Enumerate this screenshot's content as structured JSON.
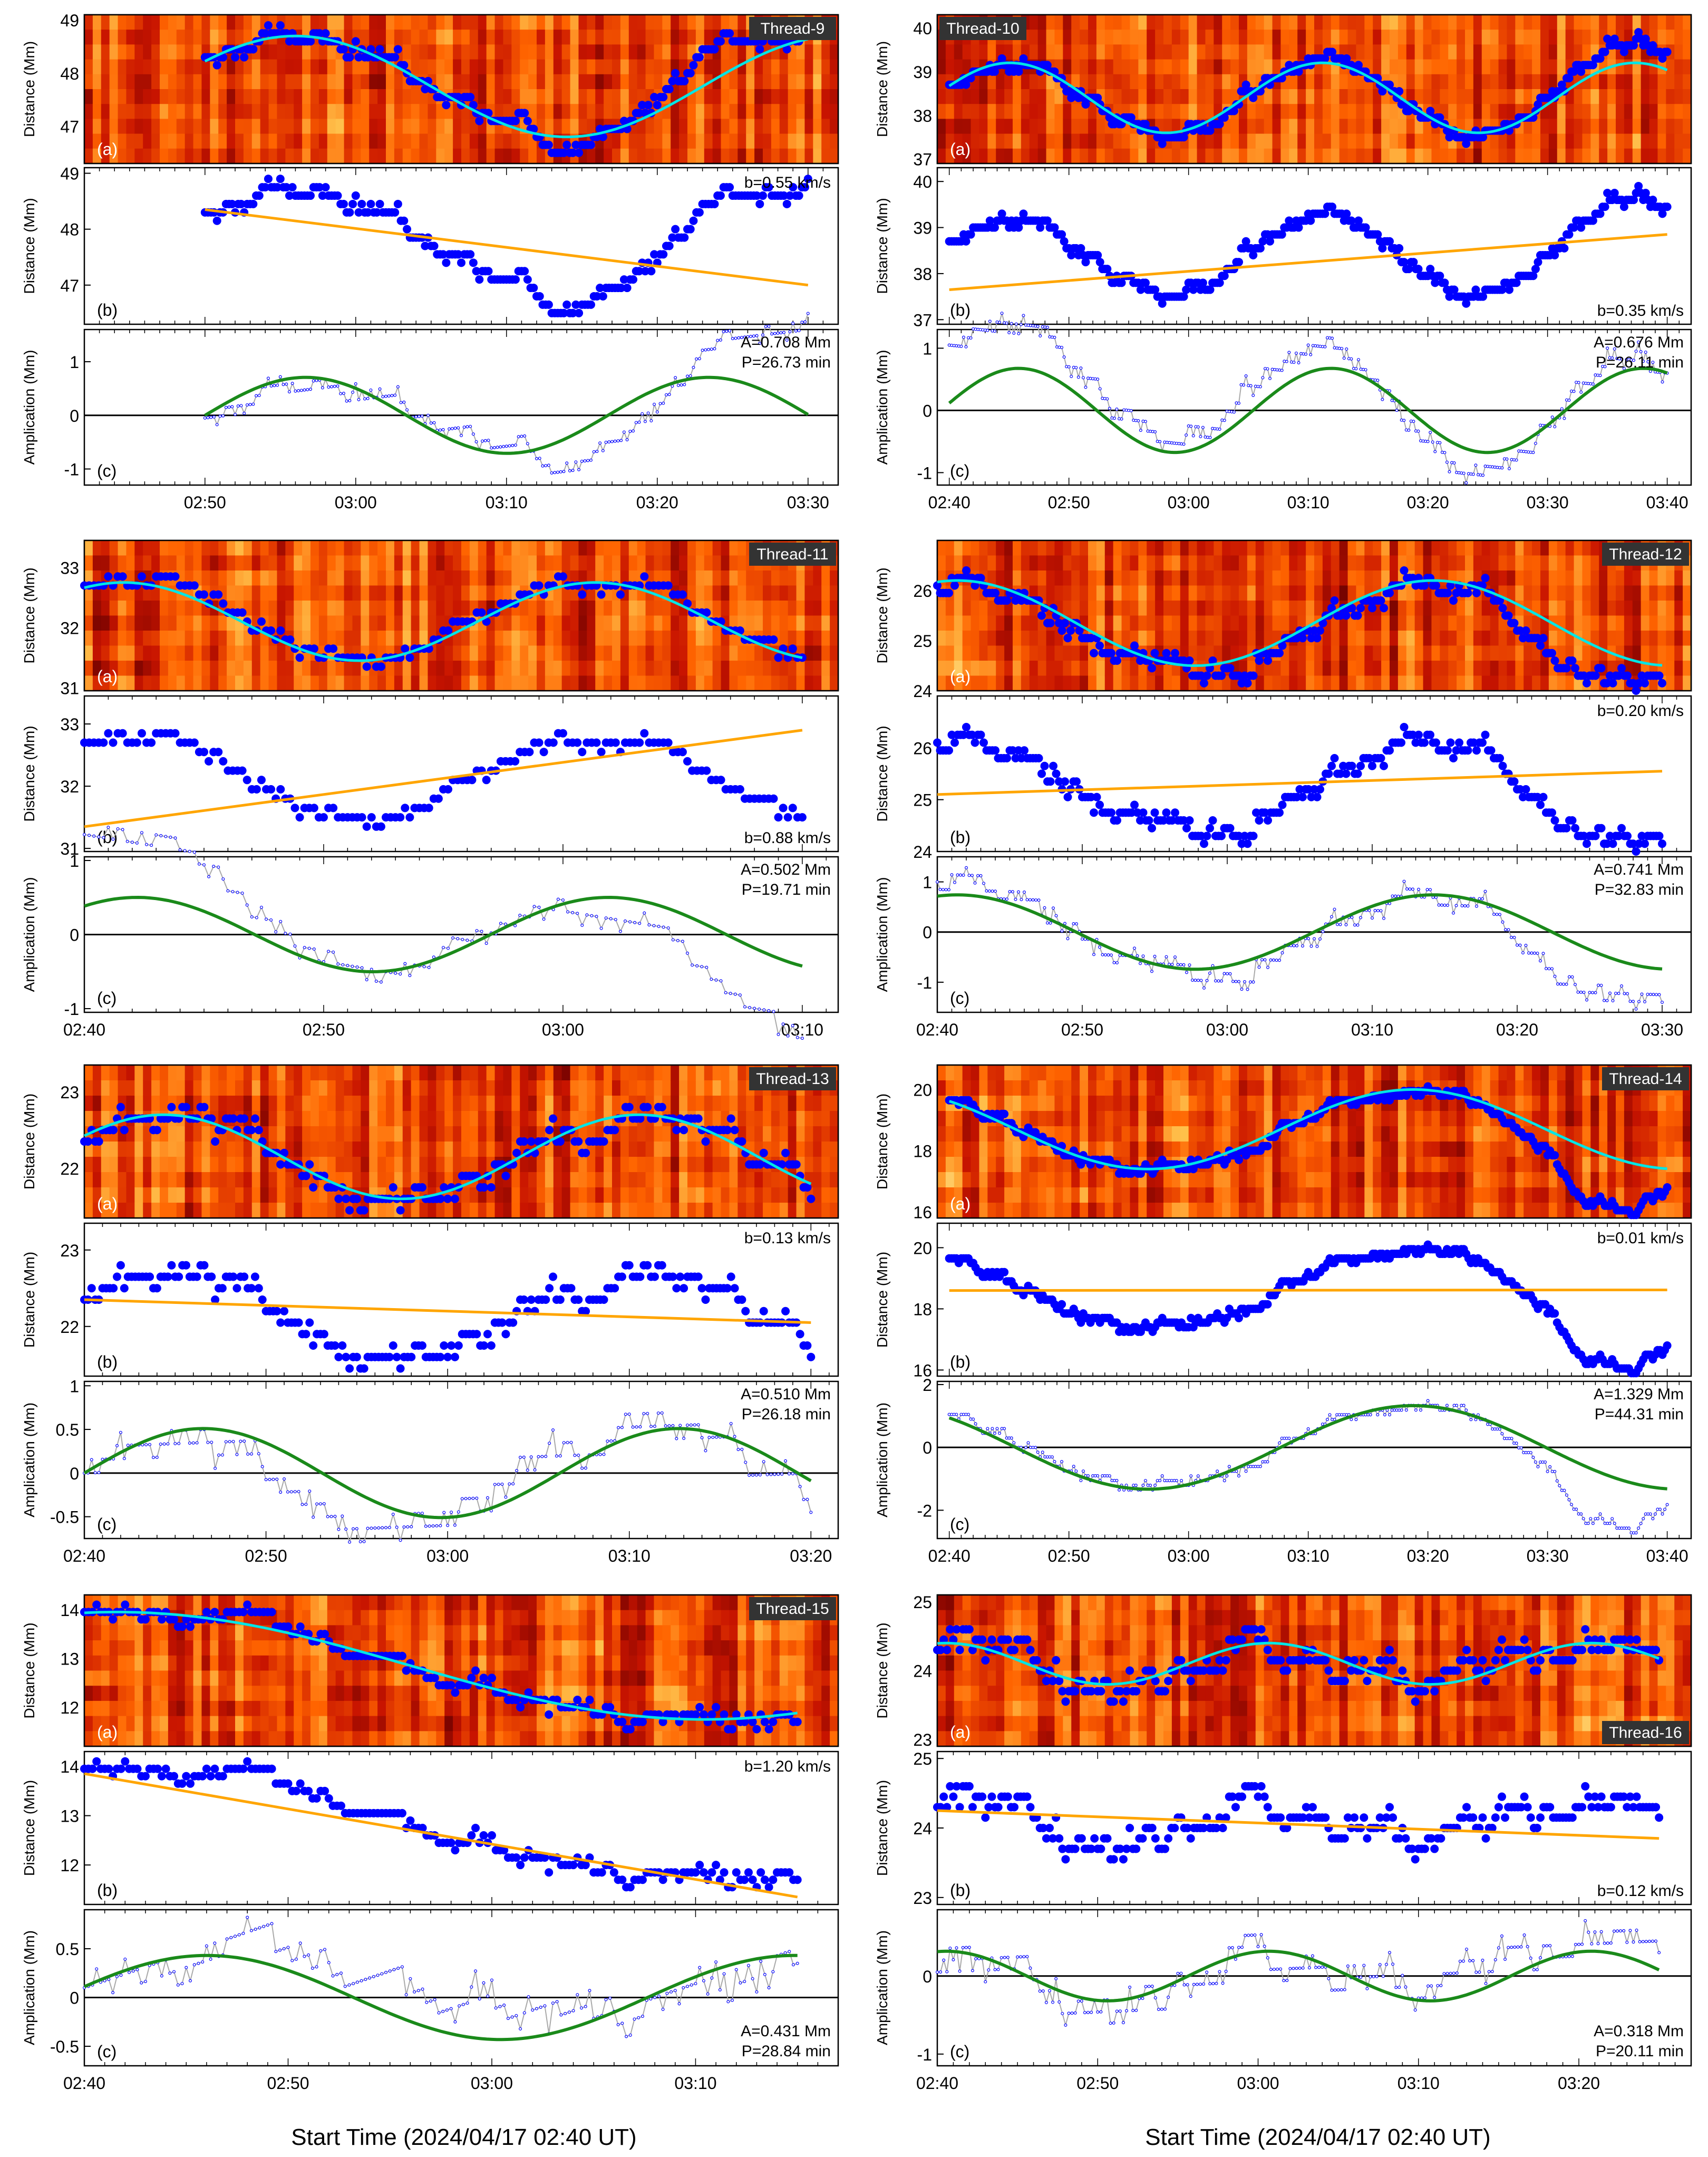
{
  "figure": {
    "xlabel_left": "Start Time (2024/04/17 02:40 UT)",
    "xlabel_right": "Start Time (2024/04/17 02:40 UT)"
  },
  "colors": {
    "data_points": "#0000ff",
    "sine_fit_top": "#00e5e5",
    "linear_trend": "#ffa500",
    "sine_fit_bottom": "#1a8a1a",
    "detrended_line": "#a9a9a9",
    "zero_line": "#000000",
    "tag_background": "#333333",
    "colormap": [
      "#000000",
      "#6a0000",
      "#c81400",
      "#ff6400",
      "#ffc34d",
      "#ffffff"
    ]
  },
  "chart_data": [
    {
      "type": "scatter",
      "title": "Thread-9",
      "start_min": 10,
      "end_min": 50,
      "tmin": 2,
      "tmax": 52,
      "ticks": [
        {
          "t": 10,
          "label": "02:50"
        },
        {
          "t": 20,
          "label": "03:00"
        },
        {
          "t": 30,
          "label": "03:10"
        },
        {
          "t": 40,
          "label": "03:20"
        },
        {
          "t": 50,
          "label": "03:30"
        }
      ],
      "panel_a": {
        "label": "(a)",
        "ylabel": "Distance (Mm)",
        "ylim": [
          46.3,
          49.1
        ],
        "yticks": [
          47,
          48,
          49
        ],
        "sine_fit": {
          "offset": 47.75,
          "amplitude": 0.95,
          "period_min": 36,
          "phase_deg": 30
        },
        "seed": 9,
        "noise": 0.22,
        "spikes": [
          {
            "t": 44,
            "dy": 0.6,
            "w": 4
          }
        ]
      },
      "panel_b": {
        "label": "(b)",
        "ylabel": "Distance (Mm)",
        "ylim": [
          46.3,
          49.1
        ],
        "yticks": [
          47,
          48,
          49
        ],
        "trend": [
          48.35,
          47.0
        ],
        "slope_label": "b=0.55 km/s",
        "slope_pos": "top"
      },
      "panel_c": {
        "label": "(c)",
        "ylabel": "Amplication (Mm)",
        "ylim": [
          -1.3,
          1.6
        ],
        "yticks": [
          -1,
          0,
          1
        ],
        "sine": {
          "amplitude": 0.708,
          "period_min": 26.73,
          "phase_deg": 0
        },
        "amp_label": "A=0.708 Mm",
        "period_label": "P=26.73 min",
        "label_pos": "top"
      }
    },
    {
      "type": "scatter",
      "title": "Thread-10",
      "start_min": 0,
      "end_min": 60,
      "tmin": -1,
      "tmax": 62,
      "ticks": [
        {
          "t": 0,
          "label": "02:40"
        },
        {
          "t": 10,
          "label": "02:50"
        },
        {
          "t": 20,
          "label": "03:00"
        },
        {
          "t": 30,
          "label": "03:10"
        },
        {
          "t": 40,
          "label": "03:20"
        },
        {
          "t": 50,
          "label": "03:30"
        },
        {
          "t": 60,
          "label": "03:40"
        }
      ],
      "panel_a": {
        "label": "(a)",
        "ylabel": "Distance (Mm)",
        "ylim": [
          36.9,
          40.3
        ],
        "yticks": [
          37,
          38,
          39,
          40
        ],
        "sine_fit": {
          "offset": 38.4,
          "amplitude": 0.8,
          "period_min": 26.11,
          "phase_deg": 20
        },
        "seed": 10,
        "noise": 0.2,
        "spikes": [
          {
            "t": 57,
            "dy": 0.5,
            "w": 4
          }
        ]
      },
      "panel_b": {
        "label": "(b)",
        "ylabel": "Distance (Mm)",
        "ylim": [
          36.9,
          40.3
        ],
        "yticks": [
          37,
          38,
          39,
          40
        ],
        "trend": [
          37.65,
          38.85
        ],
        "slope_label": "b=0.35 km/s",
        "slope_pos": "bottom"
      },
      "panel_c": {
        "label": "(c)",
        "ylabel": "Amplication (Mm)",
        "ylim": [
          -1.2,
          1.3
        ],
        "yticks": [
          -1,
          0,
          1
        ],
        "sine": {
          "amplitude": 0.676,
          "period_min": 26.11,
          "phase_deg": 10
        },
        "amp_label": "A=0.676 Mm",
        "period_label": "P=26.11 min",
        "label_pos": "top"
      }
    },
    {
      "type": "scatter",
      "title": "Thread-11",
      "start_min": 0,
      "end_min": 30,
      "tmin": 0,
      "tmax": 31.5,
      "ticks": [
        {
          "t": 0,
          "label": "02:40"
        },
        {
          "t": 10,
          "label": "02:50"
        },
        {
          "t": 20,
          "label": "03:00"
        },
        {
          "t": 30,
          "label": "03:10"
        }
      ],
      "panel_a": {
        "label": "(a)",
        "ylabel": "Distance (Mm)",
        "ylim": [
          30.95,
          33.45
        ],
        "yticks": [
          31,
          32,
          33
        ],
        "sine_fit": {
          "offset": 32.1,
          "amplitude": 0.65,
          "period_min": 19.71,
          "phase_deg": 60
        },
        "seed": 11,
        "noise": 0.18,
        "spikes": []
      },
      "panel_b": {
        "label": "(b)",
        "ylabel": "Distance (Mm)",
        "ylim": [
          30.95,
          33.45
        ],
        "yticks": [
          31,
          32,
          33
        ],
        "trend": [
          31.35,
          32.9
        ],
        "slope_label": "b=0.88 km/s",
        "slope_pos": "bottom"
      },
      "panel_c": {
        "label": "(c)",
        "ylabel": "Amplication (Mm)",
        "ylim": [
          -1.05,
          1.05
        ],
        "yticks": [
          -1,
          0,
          1
        ],
        "sine": {
          "amplitude": 0.502,
          "period_min": 19.71,
          "phase_deg": 50
        },
        "amp_label": "A=0.502 Mm",
        "period_label": "P=19.71 min",
        "label_pos": "top"
      }
    },
    {
      "type": "scatter",
      "title": "Thread-12",
      "start_min": 0,
      "end_min": 50,
      "tmin": 0,
      "tmax": 52,
      "ticks": [
        {
          "t": 0,
          "label": "02:40"
        },
        {
          "t": 10,
          "label": "02:50"
        },
        {
          "t": 20,
          "label": "03:00"
        },
        {
          "t": 30,
          "label": "03:10"
        },
        {
          "t": 40,
          "label": "03:20"
        },
        {
          "t": 50,
          "label": "03:30"
        }
      ],
      "panel_a": {
        "label": "(a)",
        "ylabel": "Distance (Mm)",
        "ylim": [
          24.0,
          27.0
        ],
        "yticks": [
          24,
          25,
          26
        ],
        "sine_fit": {
          "offset": 25.35,
          "amplitude": 0.85,
          "period_min": 32.83,
          "phase_deg": 75
        },
        "seed": 12,
        "noise": 0.3,
        "spikes": [
          {
            "t": 45,
            "dy": -0.8,
            "w": 4
          }
        ]
      },
      "panel_b": {
        "label": "(b)",
        "ylabel": "Distance (Mm)",
        "ylim": [
          24.0,
          27.0
        ],
        "yticks": [
          24,
          25,
          26
        ],
        "trend": [
          25.1,
          25.55
        ],
        "slope_label": "b=0.20 km/s",
        "slope_pos": "top"
      },
      "panel_c": {
        "label": "(c)",
        "ylabel": "Amplication (Mm)",
        "ylim": [
          -1.6,
          1.5
        ],
        "yticks": [
          -1,
          0,
          1
        ],
        "sine": {
          "amplitude": 0.741,
          "period_min": 32.83,
          "phase_deg": 75
        },
        "amp_label": "A=0.741 Mm",
        "period_label": "P=32.83 min",
        "label_pos": "top"
      }
    },
    {
      "type": "scatter",
      "title": "Thread-13",
      "start_min": 0,
      "end_min": 40,
      "tmin": 0,
      "tmax": 41.5,
      "ticks": [
        {
          "t": 0,
          "label": "02:40"
        },
        {
          "t": 10,
          "label": "02:50"
        },
        {
          "t": 20,
          "label": "03:00"
        },
        {
          "t": 30,
          "label": "03:10"
        },
        {
          "t": 40,
          "label": "03:20"
        }
      ],
      "panel_a": {
        "label": "(a)",
        "ylabel": "Distance (Mm)",
        "ylim": [
          21.35,
          23.35
        ],
        "yticks": [
          22,
          23
        ],
        "sine_fit": {
          "offset": 22.15,
          "amplitude": 0.55,
          "period_min": 26.18,
          "phase_deg": 30
        },
        "seed": 13,
        "noise": 0.22,
        "spikes": []
      },
      "panel_b": {
        "label": "(b)",
        "ylabel": "Distance (Mm)",
        "ylim": [
          21.35,
          23.35
        ],
        "yticks": [
          22,
          23
        ],
        "trend": [
          22.35,
          22.05
        ],
        "slope_label": "b=0.13 km/s",
        "slope_pos": "top"
      },
      "panel_c": {
        "label": "(c)",
        "ylabel": "Amplication (Mm)",
        "ylim": [
          -0.75,
          1.05
        ],
        "yticks": [
          -0.5,
          0.0,
          0.5,
          1.0
        ],
        "sine": {
          "amplitude": 0.51,
          "period_min": 26.18,
          "phase_deg": 0
        },
        "amp_label": "A=0.510 Mm",
        "period_label": "P=26.18 min",
        "label_pos": "top"
      }
    },
    {
      "type": "scatter",
      "title": "Thread-14",
      "start_min": 0,
      "end_min": 60,
      "tmin": -1,
      "tmax": 62,
      "ticks": [
        {
          "t": 0,
          "label": "02:40"
        },
        {
          "t": 10,
          "label": "02:50"
        },
        {
          "t": 20,
          "label": "03:00"
        },
        {
          "t": 30,
          "label": "03:10"
        },
        {
          "t": 40,
          "label": "03:20"
        },
        {
          "t": 50,
          "label": "03:30"
        },
        {
          "t": 60,
          "label": "03:40"
        }
      ],
      "panel_a": {
        "label": "(a)",
        "ylabel": "Distance (Mm)",
        "ylim": [
          15.8,
          20.8
        ],
        "yticks": [
          16,
          18,
          20
        ],
        "sine_fit": {
          "offset": 18.7,
          "amplitude": 1.3,
          "period_min": 44.31,
          "phase_deg": 135
        },
        "seed": 14,
        "noise": 0.25,
        "spikes": [
          {
            "t": 55,
            "dy": -1.6,
            "w": 6
          }
        ]
      },
      "panel_b": {
        "label": "(b)",
        "ylabel": "Distance (Mm)",
        "ylim": [
          15.8,
          20.8
        ],
        "yticks": [
          16,
          18,
          20
        ],
        "trend": [
          18.6,
          18.62
        ],
        "slope_label": "b=0.01 km/s",
        "slope_pos": "top"
      },
      "panel_c": {
        "label": "(c)",
        "ylabel": "Amplication (Mm)",
        "ylim": [
          -2.9,
          2.1
        ],
        "yticks": [
          -2,
          0,
          2
        ],
        "sine": {
          "amplitude": 1.329,
          "period_min": 44.31,
          "phase_deg": 135
        },
        "amp_label": "A=1.329 Mm",
        "period_label": "P=44.31 min",
        "label_pos": "top"
      }
    },
    {
      "type": "scatter",
      "title": "Thread-15",
      "start_min": 0,
      "end_min": 35,
      "tmin": 0,
      "tmax": 37,
      "ticks": [
        {
          "t": 0,
          "label": "02:40"
        },
        {
          "t": 10,
          "label": "02:50"
        },
        {
          "t": 20,
          "label": "03:00"
        },
        {
          "t": 30,
          "label": "03:10"
        }
      ],
      "panel_a": {
        "label": "(a)",
        "ylabel": "Distance (Mm)",
        "ylim": [
          11.2,
          14.3
        ],
        "yticks": [
          12,
          13,
          14
        ],
        "sine_fit": {
          "offset": 12.85,
          "amplitude": 1.1,
          "period_min": 57.68,
          "phase_deg": 80
        },
        "seed": 15,
        "noise": 0.25,
        "spikes": []
      },
      "panel_b": {
        "label": "(b)",
        "ylabel": "Distance (Mm)",
        "ylim": [
          11.2,
          14.3
        ],
        "yticks": [
          12,
          13,
          14
        ],
        "trend": [
          13.85,
          11.35
        ],
        "slope_label": "b=1.20 km/s",
        "slope_pos": "top"
      },
      "panel_c": {
        "label": "(c)",
        "ylabel": "Amplication (Mm)",
        "ylim": [
          -0.7,
          0.9
        ],
        "yticks": [
          -0.5,
          0.0,
          0.5
        ],
        "sine": {
          "amplitude": 0.431,
          "period_min": 28.84,
          "phase_deg": 15
        },
        "amp_label": "A=0.431 Mm",
        "period_label": "P=28.84 min",
        "label_pos": "bottom"
      }
    },
    {
      "type": "scatter",
      "title": "Thread-16",
      "start_min": 0,
      "end_min": 45,
      "tmin": 0,
      "tmax": 47,
      "ticks": [
        {
          "t": 0,
          "label": "02:40"
        },
        {
          "t": 10,
          "label": "02:50"
        },
        {
          "t": 20,
          "label": "03:00"
        },
        {
          "t": 30,
          "label": "03:10"
        },
        {
          "t": 40,
          "label": "03:20"
        }
      ],
      "panel_a": {
        "label": "(a)",
        "ylabel": "Distance (Mm)",
        "ylim": [
          22.9,
          25.1
        ],
        "yticks": [
          23,
          24,
          25
        ],
        "sine_fit": {
          "offset": 24.1,
          "amplitude": 0.3,
          "period_min": 20.11,
          "phase_deg": 80
        },
        "seed": 16,
        "noise": 0.28,
        "spikes": []
      },
      "panel_b": {
        "label": "(b)",
        "ylabel": "Distance (Mm)",
        "ylim": [
          22.9,
          25.1
        ],
        "yticks": [
          23,
          24,
          25
        ],
        "trend": [
          24.25,
          23.85
        ],
        "slope_label": "b=0.12 km/s",
        "slope_pos": "bottom"
      },
      "panel_c": {
        "label": "(c)",
        "ylabel": "Amplication (Mm)",
        "ylim": [
          -1.15,
          0.85
        ],
        "yticks": [
          -1,
          0
        ],
        "sine": {
          "amplitude": 0.318,
          "period_min": 20.11,
          "phase_deg": 80
        },
        "amp_label": "A=0.318 Mm",
        "period_label": "P=20.11 min",
        "label_pos": "bottom"
      }
    }
  ]
}
